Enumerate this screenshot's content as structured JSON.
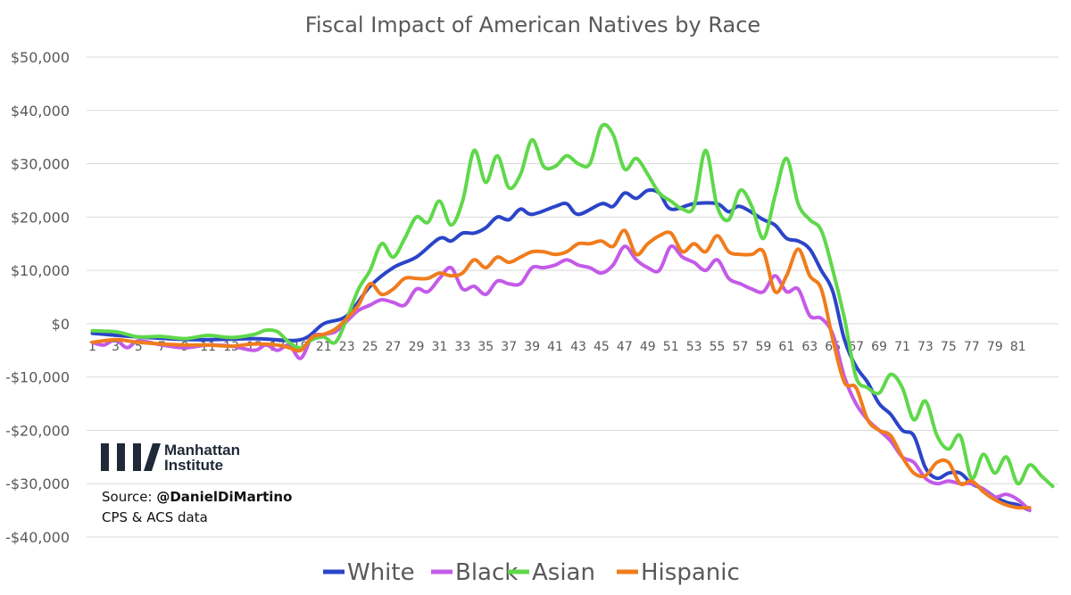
{
  "chart_data": {
    "type": "line",
    "title": "Fiscal Impact of American Natives by Race",
    "xlabel": "",
    "ylabel": "",
    "ylim": [
      -40000,
      50000
    ],
    "y_ticks": [
      {
        "value": 50000,
        "label": "$50,000"
      },
      {
        "value": 40000,
        "label": "$40,000"
      },
      {
        "value": 30000,
        "label": "$30,000"
      },
      {
        "value": 20000,
        "label": "$20,000"
      },
      {
        "value": 10000,
        "label": "$10,000"
      },
      {
        "value": 0,
        "label": "$0"
      },
      {
        "value": -10000,
        "label": "-$10,000"
      },
      {
        "value": -20000,
        "label": "-$20,000"
      },
      {
        "value": -30000,
        "label": "-$30,000"
      },
      {
        "value": -40000,
        "label": "-$40,000"
      }
    ],
    "x_start": 1,
    "x_end": 82,
    "x_tick_labels": [
      "1",
      "3",
      "5",
      "7",
      "9",
      "11",
      "13",
      "15",
      "17",
      "19",
      "21",
      "23",
      "25",
      "27",
      "29",
      "31",
      "33",
      "35",
      "37",
      "39",
      "41",
      "43",
      "45",
      "47",
      "49",
      "51",
      "53",
      "55",
      "57",
      "59",
      "61",
      "63",
      "65",
      "67",
      "69",
      "71",
      "73",
      "75",
      "77",
      "79",
      "81"
    ],
    "legend_position": "bottom",
    "series": [
      {
        "name": "White",
        "color": "#2b45c8",
        "points": [
          [
            1,
            -1800
          ],
          [
            5,
            -2500
          ],
          [
            10,
            -3000
          ],
          [
            15,
            -2800
          ],
          [
            19,
            -3000
          ],
          [
            21,
            0
          ],
          [
            23,
            1500
          ],
          [
            25,
            7000
          ],
          [
            27,
            10500
          ],
          [
            29,
            12500
          ],
          [
            31,
            16000
          ],
          [
            32,
            15500
          ],
          [
            33,
            17000
          ],
          [
            34,
            17000
          ],
          [
            35,
            18000
          ],
          [
            36,
            20000
          ],
          [
            37,
            19500
          ],
          [
            38,
            21500
          ],
          [
            39,
            20500
          ],
          [
            41,
            22000
          ],
          [
            42,
            22500
          ],
          [
            43,
            20500
          ],
          [
            45,
            22500
          ],
          [
            46,
            22000
          ],
          [
            47,
            24500
          ],
          [
            48,
            23500
          ],
          [
            49,
            25000
          ],
          [
            50,
            24500
          ],
          [
            51,
            21500
          ],
          [
            53,
            22500
          ],
          [
            55,
            22500
          ],
          [
            56,
            21000
          ],
          [
            57,
            22000
          ],
          [
            59,
            19500
          ],
          [
            60,
            18500
          ],
          [
            61,
            16000
          ],
          [
            62,
            15500
          ],
          [
            63,
            14000
          ],
          [
            64,
            10000
          ],
          [
            65,
            6000
          ],
          [
            66,
            -3000
          ],
          [
            67,
            -8000
          ],
          [
            68,
            -11000
          ],
          [
            69,
            -15000
          ],
          [
            70,
            -17000
          ],
          [
            71,
            -20000
          ],
          [
            72,
            -21000
          ],
          [
            73,
            -27000
          ],
          [
            74,
            -29000
          ],
          [
            75,
            -28000
          ],
          [
            76,
            -28000
          ],
          [
            77,
            -30000
          ],
          [
            78,
            -31000
          ],
          [
            79,
            -32500
          ],
          [
            80,
            -33500
          ],
          [
            81,
            -34000
          ],
          [
            82,
            -35000
          ]
        ]
      },
      {
        "name": "Black",
        "color": "#c45ae8",
        "points": [
          [
            1,
            -3500
          ],
          [
            2,
            -4000
          ],
          [
            3,
            -3000
          ],
          [
            4,
            -4500
          ],
          [
            5,
            -3200
          ],
          [
            7,
            -4000
          ],
          [
            9,
            -4500
          ],
          [
            11,
            -4000
          ],
          [
            13,
            -4200
          ],
          [
            15,
            -5000
          ],
          [
            16,
            -4000
          ],
          [
            17,
            -5000
          ],
          [
            18,
            -4000
          ],
          [
            19,
            -6500
          ],
          [
            20,
            -2500
          ],
          [
            21,
            -2000
          ],
          [
            22,
            -1500
          ],
          [
            23,
            500
          ],
          [
            24,
            2500
          ],
          [
            25,
            3500
          ],
          [
            26,
            4500
          ],
          [
            27,
            4000
          ],
          [
            28,
            3500
          ],
          [
            29,
            6500
          ],
          [
            30,
            6000
          ],
          [
            31,
            8500
          ],
          [
            32,
            10500
          ],
          [
            33,
            6500
          ],
          [
            34,
            7000
          ],
          [
            35,
            5500
          ],
          [
            36,
            8000
          ],
          [
            37,
            7500
          ],
          [
            38,
            7500
          ],
          [
            39,
            10500
          ],
          [
            40,
            10500
          ],
          [
            41,
            11000
          ],
          [
            42,
            12000
          ],
          [
            43,
            11000
          ],
          [
            44,
            10500
          ],
          [
            45,
            9500
          ],
          [
            46,
            11000
          ],
          [
            47,
            14500
          ],
          [
            48,
            12000
          ],
          [
            49,
            10500
          ],
          [
            50,
            10000
          ],
          [
            51,
            14500
          ],
          [
            52,
            12500
          ],
          [
            53,
            11500
          ],
          [
            54,
            10000
          ],
          [
            55,
            12000
          ],
          [
            56,
            8500
          ],
          [
            57,
            7500
          ],
          [
            58,
            6500
          ],
          [
            59,
            6000
          ],
          [
            60,
            9000
          ],
          [
            61,
            6000
          ],
          [
            62,
            6500
          ],
          [
            63,
            1500
          ],
          [
            64,
            1000
          ],
          [
            65,
            -2000
          ],
          [
            66,
            -10000
          ],
          [
            67,
            -15000
          ],
          [
            68,
            -18000
          ],
          [
            69,
            -20000
          ],
          [
            70,
            -22000
          ],
          [
            71,
            -25000
          ],
          [
            72,
            -26000
          ],
          [
            73,
            -29000
          ],
          [
            74,
            -30000
          ],
          [
            75,
            -29500
          ],
          [
            76,
            -30000
          ],
          [
            77,
            -30000
          ],
          [
            78,
            -31000
          ],
          [
            79,
            -32500
          ],
          [
            80,
            -32000
          ],
          [
            81,
            -33000
          ],
          [
            82,
            -35000
          ]
        ]
      },
      {
        "name": "Asian",
        "color": "#5fd84a",
        "points": [
          [
            1,
            -1300
          ],
          [
            3,
            -1500
          ],
          [
            4,
            -2000
          ],
          [
            5,
            -2500
          ],
          [
            7,
            -2400
          ],
          [
            9,
            -2800
          ],
          [
            11,
            -2200
          ],
          [
            13,
            -2600
          ],
          [
            15,
            -2000
          ],
          [
            16,
            -1200
          ],
          [
            17,
            -1500
          ],
          [
            18,
            -3500
          ],
          [
            19,
            -4500
          ],
          [
            20,
            -3000
          ],
          [
            21,
            -2500
          ],
          [
            22,
            -3500
          ],
          [
            23,
            1000
          ],
          [
            24,
            6500
          ],
          [
            25,
            10000
          ],
          [
            26,
            15000
          ],
          [
            27,
            12500
          ],
          [
            28,
            16000
          ],
          [
            29,
            20000
          ],
          [
            30,
            19000
          ],
          [
            31,
            23000
          ],
          [
            32,
            18500
          ],
          [
            33,
            23000
          ],
          [
            34,
            32500
          ],
          [
            35,
            26500
          ],
          [
            36,
            31500
          ],
          [
            37,
            25500
          ],
          [
            38,
            28000
          ],
          [
            39,
            34500
          ],
          [
            40,
            29500
          ],
          [
            41,
            29500
          ],
          [
            42,
            31500
          ],
          [
            43,
            30000
          ],
          [
            44,
            30000
          ],
          [
            45,
            37000
          ],
          [
            46,
            35500
          ],
          [
            47,
            29000
          ],
          [
            48,
            31000
          ],
          [
            49,
            28000
          ],
          [
            50,
            24500
          ],
          [
            51,
            23000
          ],
          [
            52,
            21500
          ],
          [
            53,
            22000
          ],
          [
            54,
            32500
          ],
          [
            55,
            22000
          ],
          [
            56,
            19500
          ],
          [
            57,
            25000
          ],
          [
            58,
            22000
          ],
          [
            59,
            16000
          ],
          [
            60,
            24000
          ],
          [
            61,
            31000
          ],
          [
            62,
            22500
          ],
          [
            63,
            19500
          ],
          [
            64,
            17500
          ],
          [
            65,
            10000
          ],
          [
            66,
            1000
          ],
          [
            67,
            -10000
          ],
          [
            68,
            -12000
          ],
          [
            69,
            -13000
          ],
          [
            70,
            -9500
          ],
          [
            71,
            -12000
          ],
          [
            72,
            -18000
          ],
          [
            73,
            -14500
          ],
          [
            74,
            -21000
          ],
          [
            75,
            -23500
          ],
          [
            76,
            -21000
          ],
          [
            77,
            -29000
          ],
          [
            78,
            -24500
          ],
          [
            79,
            -28000
          ],
          [
            80,
            -25000
          ],
          [
            81,
            -30000
          ],
          [
            82,
            -26500
          ],
          [
            83,
            -28500
          ],
          [
            84,
            -30500
          ]
        ]
      },
      {
        "name": "Hispanic",
        "color": "#f07c1c",
        "points": [
          [
            1,
            -3500
          ],
          [
            3,
            -3000
          ],
          [
            5,
            -3500
          ],
          [
            7,
            -3800
          ],
          [
            9,
            -4000
          ],
          [
            11,
            -4000
          ],
          [
            13,
            -4200
          ],
          [
            15,
            -3800
          ],
          [
            17,
            -4000
          ],
          [
            18,
            -4500
          ],
          [
            19,
            -5000
          ],
          [
            20,
            -2500
          ],
          [
            21,
            -2000
          ],
          [
            22,
            -1000
          ],
          [
            23,
            1000
          ],
          [
            24,
            3500
          ],
          [
            25,
            7500
          ],
          [
            26,
            5500
          ],
          [
            27,
            6500
          ],
          [
            28,
            8500
          ],
          [
            29,
            8500
          ],
          [
            30,
            8500
          ],
          [
            31,
            9500
          ],
          [
            32,
            9000
          ],
          [
            33,
            9500
          ],
          [
            34,
            12000
          ],
          [
            35,
            10500
          ],
          [
            36,
            12500
          ],
          [
            37,
            11500
          ],
          [
            38,
            12500
          ],
          [
            39,
            13500
          ],
          [
            40,
            13500
          ],
          [
            41,
            13000
          ],
          [
            42,
            13500
          ],
          [
            43,
            15000
          ],
          [
            44,
            15000
          ],
          [
            45,
            15500
          ],
          [
            46,
            14500
          ],
          [
            47,
            17500
          ],
          [
            48,
            13000
          ],
          [
            49,
            15000
          ],
          [
            50,
            16500
          ],
          [
            51,
            17000
          ],
          [
            52,
            13500
          ],
          [
            53,
            15000
          ],
          [
            54,
            13500
          ],
          [
            55,
            16500
          ],
          [
            56,
            13500
          ],
          [
            57,
            13000
          ],
          [
            58,
            13000
          ],
          [
            59,
            13500
          ],
          [
            60,
            6000
          ],
          [
            61,
            9000
          ],
          [
            62,
            14000
          ],
          [
            63,
            9000
          ],
          [
            64,
            6500
          ],
          [
            65,
            -3000
          ],
          [
            66,
            -11000
          ],
          [
            67,
            -12000
          ],
          [
            68,
            -18000
          ],
          [
            69,
            -20000
          ],
          [
            70,
            -21000
          ],
          [
            71,
            -25000
          ],
          [
            72,
            -28000
          ],
          [
            73,
            -28500
          ],
          [
            74,
            -26000
          ],
          [
            75,
            -26000
          ],
          [
            76,
            -30000
          ],
          [
            77,
            -29500
          ],
          [
            78,
            -31500
          ],
          [
            79,
            -33000
          ],
          [
            80,
            -34000
          ],
          [
            81,
            -34500
          ],
          [
            82,
            -34500
          ]
        ]
      }
    ]
  },
  "logo": {
    "name_line1": "Manhattan",
    "name_line2": "Institute"
  },
  "source": {
    "prefix": "Source: ",
    "handle": "@DanielDiMartino",
    "line2": "CPS & ACS data"
  }
}
